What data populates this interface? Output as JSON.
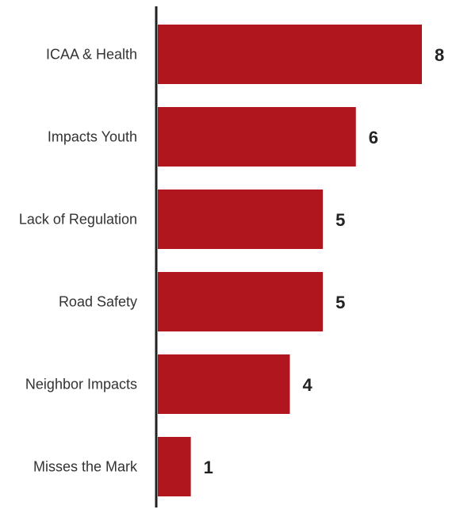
{
  "chart_data": {
    "type": "bar",
    "orientation": "horizontal",
    "title": "",
    "xlabel": "",
    "ylabel": "",
    "categories": [
      "ICAA & Health",
      "Impacts Youth",
      "Lack of Regulation",
      "Road Safety",
      "Neighbor Impacts",
      "Misses the Mark"
    ],
    "values": [
      8,
      6,
      5,
      5,
      4,
      1
    ],
    "xlim": [
      0,
      8
    ],
    "grid": false,
    "legend": "none",
    "bar_color": "#b0161e",
    "axis_color": "#222222"
  }
}
